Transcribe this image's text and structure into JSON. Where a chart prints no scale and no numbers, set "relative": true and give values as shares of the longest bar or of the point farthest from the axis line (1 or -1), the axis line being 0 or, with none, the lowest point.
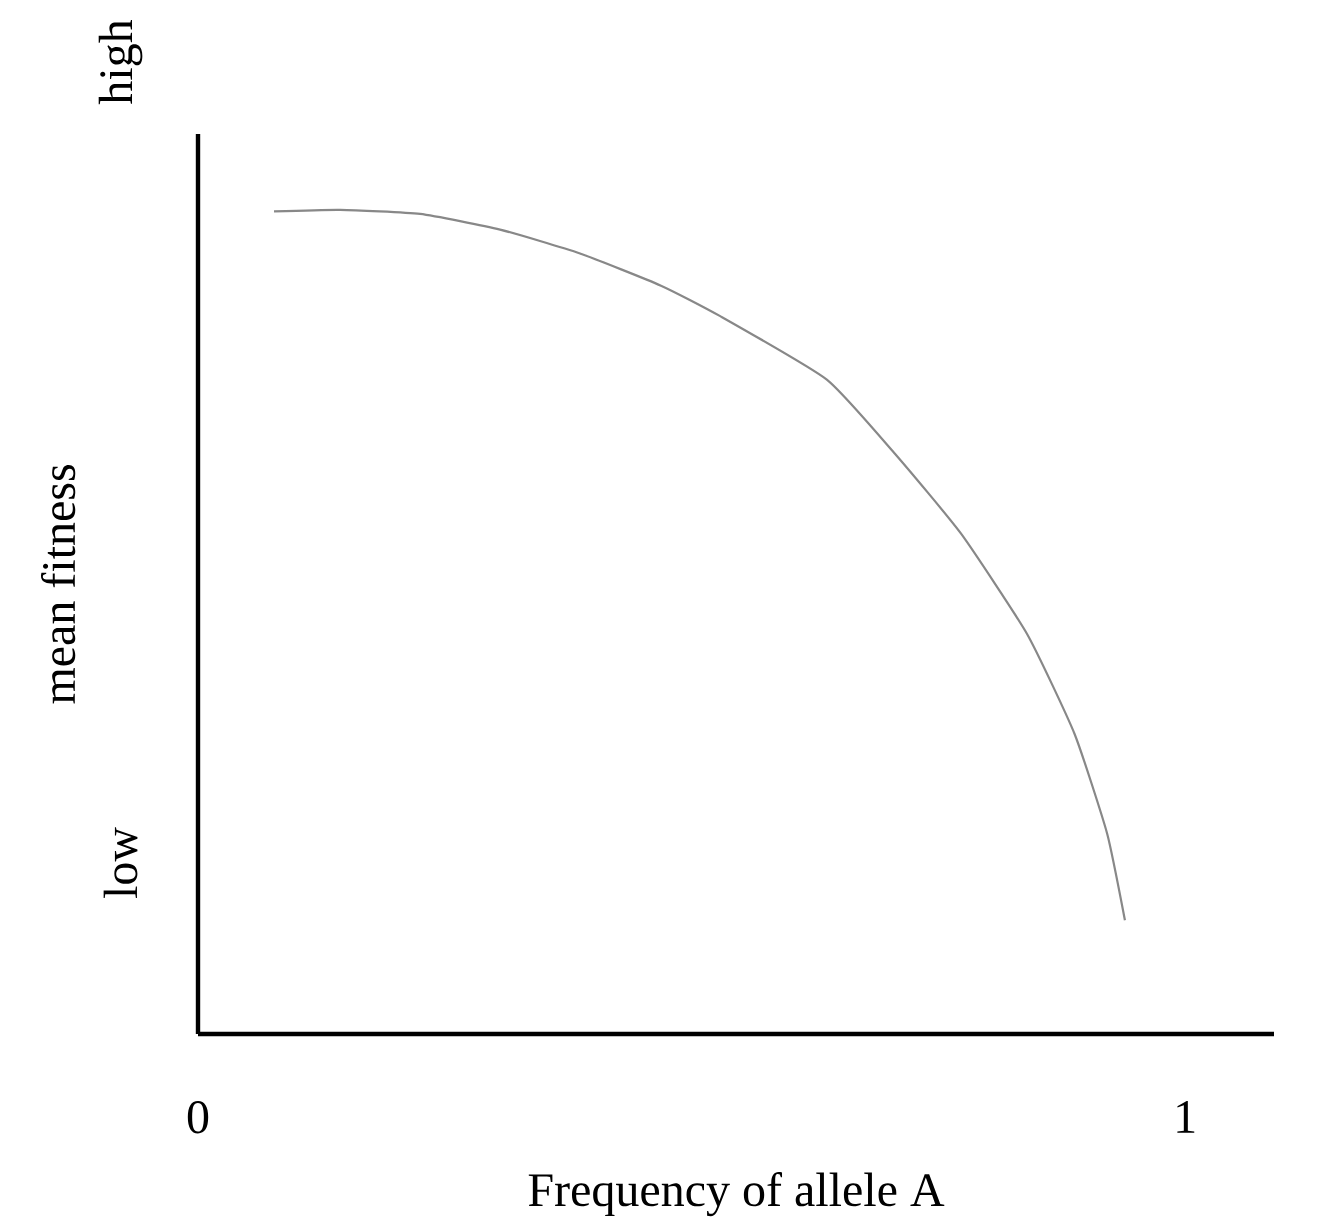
{
  "chart_data": {
    "type": "line",
    "relative": true,
    "xlabel": "Frequency of allele A",
    "ylabel": "mean fitness",
    "xlim": [
      0,
      1.09
    ],
    "xticks": [
      0,
      1
    ],
    "annotations": [
      "low",
      "high"
    ],
    "series": [
      {
        "color": "#888888",
        "x": [
          0.077,
          0.144,
          0.225,
          0.306,
          0.387,
          0.469,
          0.529,
          0.637,
          0.706,
          0.773,
          0.84,
          0.888,
          0.921,
          0.939
        ],
        "values": [
          0.998,
          1,
          0.995,
          0.976,
          0.947,
          0.908,
          0.871,
          0.794,
          0.704,
          0.607,
          0.485,
          0.364,
          0.243,
          0.138
        ]
      }
    ],
    "grid": false,
    "marker": "none",
    "line_style": "solid"
  }
}
